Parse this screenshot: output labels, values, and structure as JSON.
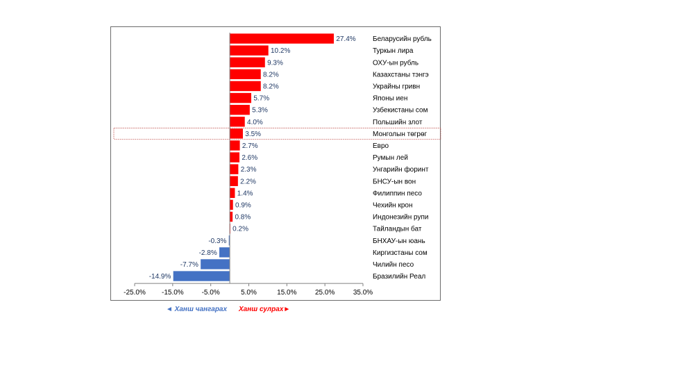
{
  "chart_data": {
    "type": "bar",
    "orientation": "horizontal",
    "categories": [
      "Беларусийн рубль",
      "Туркын лира",
      "ОХУ-ын рубль",
      "Казахстаны тэнгэ",
      "Украйны гривн",
      "Японы иен",
      "Узбекистаны сом",
      "Польшийн злот",
      "Монголын төгрөг",
      "Евро",
      "Румын лей",
      "Унгарийн форинт",
      "БНСУ-ын вон",
      "Филиппин песо",
      "Чехийн крон",
      "Индонезийн рупи",
      "Тайландын бат",
      "БНХАУ-ын юань",
      "Киргизстаны сом",
      "Чилийн песо",
      "Бразилийн Реал"
    ],
    "values": [
      27.4,
      10.2,
      9.3,
      8.2,
      8.2,
      5.7,
      5.3,
      4.0,
      3.5,
      2.7,
      2.6,
      2.3,
      2.2,
      1.4,
      0.9,
      0.8,
      0.2,
      -0.3,
      -2.8,
      -7.7,
      -14.9
    ],
    "value_labels": [
      "27.4%",
      "10.2%",
      "9.3%",
      "8.2%",
      "8.2%",
      "5.7%",
      "5.3%",
      "4.0%",
      "3.5%",
      "2.7%",
      "2.6%",
      "2.3%",
      "2.2%",
      "1.4%",
      "0.9%",
      "0.8%",
      "0.2%",
      "-0.3%",
      "-2.8%",
      "-7.7%",
      "-14.9%"
    ],
    "highlighted_category": "Монголын төгрөг",
    "xlim": [
      -25,
      35
    ],
    "xticks": [
      "-25.0%",
      "-15.0%",
      "-5.0%",
      "5.0%",
      "15.0%",
      "25.0%",
      "35.0%"
    ],
    "xtick_values": [
      -25,
      -15,
      -5,
      5,
      15,
      25,
      35
    ],
    "colors": {
      "positive": "#ff0000",
      "negative": "#4472c4",
      "highlight_border": "#c0504d",
      "label": "#1f3864"
    },
    "grid": false
  },
  "legend": {
    "down": "◄ Ханш чангарах",
    "up": "Ханш сулрах►"
  }
}
